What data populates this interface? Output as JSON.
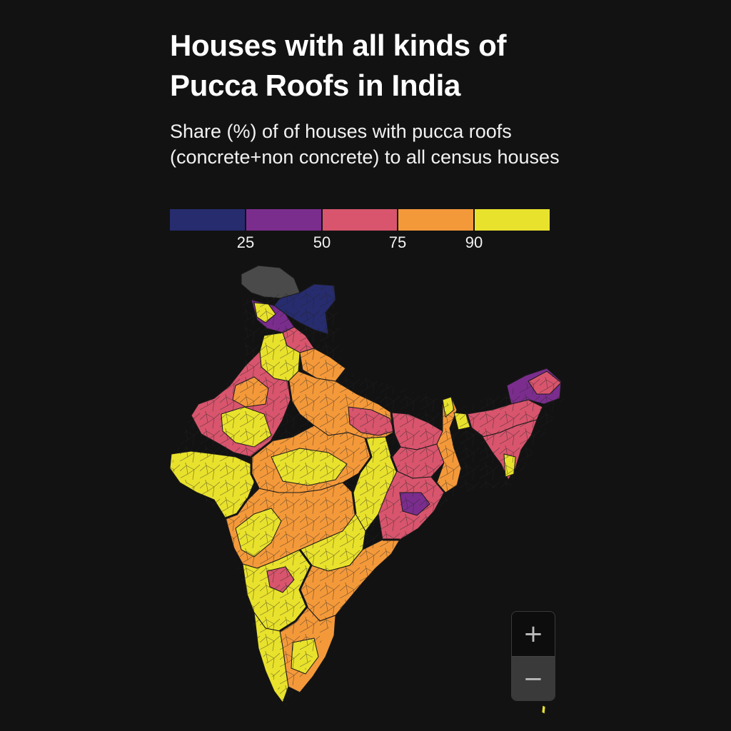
{
  "title": "Houses with all kinds of Pucca Roofs in India",
  "subtitle": "Share (%) of of houses with pucca roofs (concrete+non concrete) to all census houses",
  "legend": {
    "bins": [
      {
        "label": "below 25",
        "color": "#262c6e"
      },
      {
        "label": "25-50",
        "color": "#7b2d8e"
      },
      {
        "label": "50-75",
        "color": "#d8556d"
      },
      {
        "label": "75-90",
        "color": "#f4993a"
      },
      {
        "label": "90+",
        "color": "#e9e22d"
      }
    ],
    "ticks": [
      "25",
      "50",
      "75",
      "90"
    ]
  },
  "map": {
    "no_data_color": "#4a4a4a",
    "border_color": "#1a1a1a"
  },
  "controls": {
    "zoom_in_label": "+",
    "zoom_out_label": "−"
  }
}
